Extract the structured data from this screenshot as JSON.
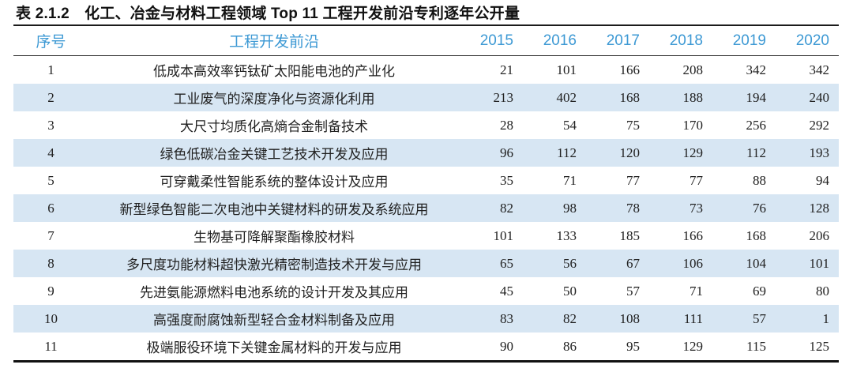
{
  "caption": "表 2.1.2　化工、冶金与材料工程领域 Top 11 工程开发前沿专利逐年公开量",
  "colors": {
    "header_text": "#3d99d4",
    "zebra_row_bg": "#d7e6f3",
    "body_text": "#212121",
    "rule_color": "#1b1b1b"
  },
  "table": {
    "columns": [
      "序号",
      "工程开发前沿",
      "2015",
      "2016",
      "2017",
      "2018",
      "2019",
      "2020"
    ],
    "rows": [
      [
        "1",
        "低成本高效率钙钛矿太阳能电池的产业化",
        "21",
        "101",
        "166",
        "208",
        "342",
        "342"
      ],
      [
        "2",
        "工业废气的深度净化与资源化利用",
        "213",
        "402",
        "168",
        "188",
        "194",
        "240"
      ],
      [
        "3",
        "大尺寸均质化高熵合金制备技术",
        "28",
        "54",
        "75",
        "170",
        "256",
        "292"
      ],
      [
        "4",
        "绿色低碳冶金关键工艺技术开发及应用",
        "96",
        "112",
        "120",
        "129",
        "112",
        "193"
      ],
      [
        "5",
        "可穿戴柔性智能系统的整体设计及应用",
        "35",
        "71",
        "77",
        "77",
        "88",
        "94"
      ],
      [
        "6",
        "新型绿色智能二次电池中关键材料的研发及系统应用",
        "82",
        "98",
        "78",
        "73",
        "76",
        "128"
      ],
      [
        "7",
        "生物基可降解聚酯橡胶材料",
        "101",
        "133",
        "185",
        "166",
        "168",
        "206"
      ],
      [
        "8",
        "多尺度功能材料超快激光精密制造技术开发与应用",
        "65",
        "56",
        "67",
        "106",
        "104",
        "101"
      ],
      [
        "9",
        "先进氨能源燃料电池系统的设计开发及其应用",
        "45",
        "50",
        "57",
        "71",
        "69",
        "80"
      ],
      [
        "10",
        "高强度耐腐蚀新型轻合金材料制备及应用",
        "83",
        "82",
        "108",
        "111",
        "57",
        "1"
      ],
      [
        "11",
        "极端服役环境下关键金属材料的开发与应用",
        "90",
        "86",
        "95",
        "129",
        "115",
        "125"
      ]
    ]
  }
}
